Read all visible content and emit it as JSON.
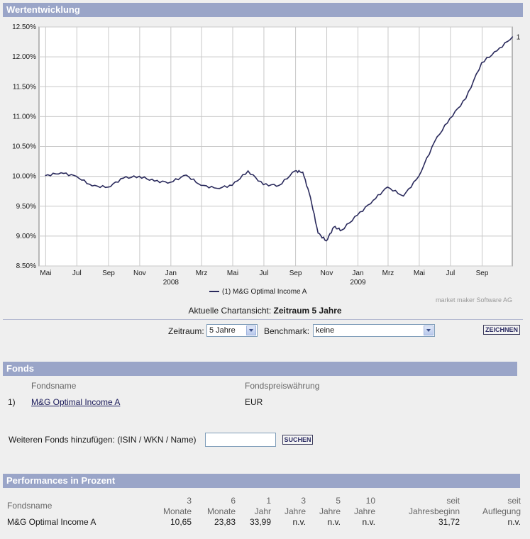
{
  "sections": {
    "werte_title": "Wertentwicklung",
    "fonds_title": "Fonds",
    "perf_title": "Performances in Prozent"
  },
  "chart_data": {
    "type": "line",
    "y_ticks": [
      "12.50%",
      "12.00%",
      "11.50%",
      "11.00%",
      "10.50%",
      "10.00%",
      "9.50%",
      "9.00%",
      "8.50%"
    ],
    "ylim": [
      8.5,
      12.5
    ],
    "x_ticks": [
      "Mai",
      "Jul",
      "Sep",
      "Nov",
      "Jan",
      "Mrz",
      "Mai",
      "Jul",
      "Sep",
      "Nov",
      "Jan",
      "Mrz",
      "Mai",
      "Jul",
      "Sep"
    ],
    "year_labels": [
      "2008",
      "2009"
    ],
    "series": [
      {
        "name": "M&G Optimal Income A",
        "end_label": "1",
        "color": "#2a2a5c",
        "x": [
          "2007-04-30",
          "2007-05-31",
          "2007-06-30",
          "2007-07-31",
          "2007-08-31",
          "2007-09-30",
          "2007-10-31",
          "2007-11-30",
          "2007-12-31",
          "2008-01-31",
          "2008-02-29",
          "2008-03-31",
          "2008-04-30",
          "2008-05-31",
          "2008-06-30",
          "2008-07-31",
          "2008-08-31",
          "2008-09-15",
          "2008-09-30",
          "2008-10-15",
          "2008-10-31",
          "2008-11-15",
          "2008-11-30",
          "2008-12-31",
          "2009-01-31",
          "2009-02-28",
          "2009-03-31",
          "2009-04-30",
          "2009-05-31",
          "2009-06-30",
          "2009-07-31",
          "2009-08-31",
          "2009-09-30",
          "2009-10-31"
        ],
        "values": [
          10.01,
          10.06,
          10.0,
          9.84,
          9.82,
          9.97,
          10.0,
          9.92,
          9.9,
          10.02,
          9.85,
          9.8,
          9.85,
          10.09,
          9.86,
          9.85,
          10.09,
          10.07,
          9.65,
          9.05,
          8.92,
          9.15,
          9.1,
          9.35,
          9.6,
          9.82,
          9.67,
          10.0,
          10.58,
          10.97,
          11.3,
          11.9,
          12.1,
          12.34
        ]
      }
    ]
  },
  "legend": {
    "text": "(1)  M&G Optimal Income A"
  },
  "credit": "market maker Software AG",
  "chart_view": {
    "prefix": "Aktuelle Chartansicht:",
    "value": "Zeitraum 5 Jahre"
  },
  "controls": {
    "zeitraum_label": "Zeitraum:",
    "zeitraum_value": "5 Jahre",
    "benchmark_label": "Benchmark:",
    "benchmark_value": "keine",
    "zeichnen_button": "ZEICHNEN"
  },
  "fonds": {
    "col_name": "Fondsname",
    "col_currency": "Fondspreiswährung",
    "rows": [
      {
        "index": "1)",
        "name": "M&G Optimal Income A",
        "currency": "EUR"
      }
    ],
    "add_label": "Weiteren Fonds hinzufügen: (ISIN / WKN / Name)",
    "search_button": "SUCHEN"
  },
  "performance": {
    "name_header": "Fondsname",
    "headers": [
      {
        "line1": "3",
        "line2": "Monate"
      },
      {
        "line1": "6",
        "line2": "Monate"
      },
      {
        "line1": "1",
        "line2": "Jahr"
      },
      {
        "line1": "3",
        "line2": "Jahre"
      },
      {
        "line1": "5",
        "line2": "Jahre"
      },
      {
        "line1": "10",
        "line2": "Jahre"
      },
      {
        "line1": "seit",
        "line2": "Jahresbeginn"
      },
      {
        "line1": "seit",
        "line2": "Auflegung"
      }
    ],
    "row": {
      "name": "M&G Optimal Income A",
      "values": [
        "10,65",
        "23,83",
        "33,99",
        "n.v.",
        "n.v.",
        "n.v.",
        "31,72",
        "n.v."
      ]
    }
  }
}
